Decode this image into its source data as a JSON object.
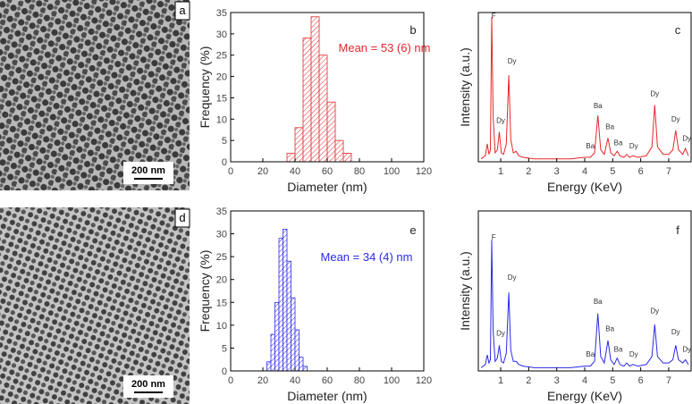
{
  "panels": [
    {
      "label": "a",
      "scale_bar": "200 nm"
    },
    {
      "label": "d",
      "scale_bar": "200 nm"
    }
  ],
  "chart_data": [
    {
      "type": "histogram",
      "panel_label": "b",
      "annotation": "Mean = 53 (6) nm",
      "xlabel": "Diameter (nm)",
      "ylabel": "Frequency (%)",
      "bins": [
        35,
        40,
        45,
        50,
        55,
        60,
        65,
        70,
        75
      ],
      "values": [
        2,
        8,
        29,
        34,
        25,
        14,
        5,
        2
      ],
      "color": "#e8262a",
      "xlim": [
        0,
        120
      ],
      "xticks": [
        0,
        20,
        40,
        60,
        80,
        100,
        120
      ],
      "ylim": [
        0,
        35
      ],
      "yticks": [
        0,
        5,
        10,
        15,
        20,
        25,
        30,
        35
      ]
    },
    {
      "type": "line",
      "panel_label": "c",
      "xlabel": "Energy (KeV)",
      "ylabel": "Intensity (a.u.)",
      "color": "#e8262a",
      "x": [
        0.3,
        0.45,
        0.52,
        0.58,
        0.63,
        0.68,
        0.73,
        0.8,
        0.88,
        0.95,
        1.02,
        1.1,
        1.2,
        1.29,
        1.36,
        1.45,
        1.55,
        1.65,
        1.8,
        2.2,
        2.8,
        3.5,
        4.0,
        4.2,
        4.35,
        4.47,
        4.57,
        4.7,
        4.83,
        4.93,
        5.05,
        5.16,
        5.26,
        5.4,
        5.5,
        5.6,
        5.72,
        5.9,
        6.2,
        6.4,
        6.5,
        6.6,
        6.8,
        7.0,
        7.15,
        7.25,
        7.35,
        7.5,
        7.6,
        7.7
      ],
      "values": [
        2,
        4,
        12,
        5,
        8,
        97,
        30,
        6,
        8,
        20,
        6,
        5,
        12,
        58,
        15,
        6,
        7,
        4,
        3,
        2,
        2,
        2,
        3,
        3,
        6,
        31,
        8,
        5,
        16,
        6,
        4,
        7,
        4,
        3,
        5,
        3,
        4,
        3,
        4,
        10,
        38,
        10,
        5,
        5,
        8,
        21,
        8,
        5,
        9,
        4
      ],
      "xlim": [
        0.2,
        7.8
      ],
      "xticks": [
        1,
        2,
        3,
        4,
        5,
        6,
        7
      ],
      "ylim": [
        0,
        100
      ],
      "annotations": [
        {
          "text": "F",
          "x": 0.75,
          "y": 96
        },
        {
          "text": "Dy",
          "x": 1.0,
          "y": 26
        },
        {
          "text": "Dy",
          "x": 1.4,
          "y": 66
        },
        {
          "text": "Ba",
          "x": 4.2,
          "y": 9
        },
        {
          "text": "Ba",
          "x": 4.47,
          "y": 36
        },
        {
          "text": "Ba",
          "x": 4.9,
          "y": 22
        },
        {
          "text": "Ba",
          "x": 5.2,
          "y": 11
        },
        {
          "text": "Dy",
          "x": 5.75,
          "y": 9
        },
        {
          "text": "Dy",
          "x": 6.5,
          "y": 44
        },
        {
          "text": "Dy",
          "x": 7.25,
          "y": 27
        },
        {
          "text": "Dy",
          "x": 7.65,
          "y": 14
        }
      ]
    },
    {
      "type": "histogram",
      "panel_label": "e",
      "annotation": "Mean = 34 (4) nm",
      "xlabel": "Diameter (nm)",
      "ylabel": "Frequency (%)",
      "bins": [
        22.5,
        25,
        27.5,
        30,
        32.5,
        35,
        37.5,
        40,
        42.5,
        45,
        47.5
      ],
      "values": [
        2,
        8,
        15,
        29,
        31,
        24,
        16,
        9,
        3,
        1
      ],
      "color": "#2a2ae8",
      "xlim": [
        0,
        120
      ],
      "xticks": [
        0,
        20,
        40,
        60,
        80,
        100,
        120
      ],
      "ylim": [
        0,
        35
      ],
      "yticks": [
        0,
        5,
        10,
        15,
        20,
        25,
        30,
        35
      ]
    },
    {
      "type": "line",
      "panel_label": "f",
      "xlabel": "Energy (KeV)",
      "ylabel": "Intensity (a.u.)",
      "color": "#2a2ae8",
      "x": [
        0.3,
        0.45,
        0.52,
        0.58,
        0.63,
        0.68,
        0.73,
        0.8,
        0.88,
        0.95,
        1.02,
        1.1,
        1.2,
        1.29,
        1.36,
        1.45,
        1.55,
        1.65,
        1.8,
        2.2,
        2.8,
        3.5,
        4.0,
        4.2,
        4.35,
        4.47,
        4.57,
        4.7,
        4.83,
        4.93,
        5.05,
        5.16,
        5.26,
        5.4,
        5.5,
        5.6,
        5.72,
        5.9,
        6.2,
        6.4,
        6.5,
        6.6,
        6.8,
        7.0,
        7.15,
        7.25,
        7.35,
        7.5,
        7.6,
        7.7
      ],
      "values": [
        2,
        4,
        10,
        5,
        7,
        82,
        25,
        6,
        8,
        16,
        6,
        5,
        11,
        49,
        13,
        6,
        6,
        4,
        3,
        2,
        2,
        2,
        3,
        3,
        6,
        36,
        9,
        5,
        19,
        7,
        4,
        8,
        4,
        3,
        5,
        3,
        4,
        3,
        4,
        9,
        29,
        9,
        5,
        5,
        7,
        16,
        7,
        5,
        7,
        4
      ],
      "xlim": [
        0.2,
        7.8
      ],
      "xticks": [
        1,
        2,
        3,
        4,
        5,
        6,
        7
      ],
      "ylim": [
        0,
        100
      ],
      "annotations": [
        {
          "text": "F",
          "x": 0.75,
          "y": 82
        },
        {
          "text": "Dy",
          "x": 1.0,
          "y": 22
        },
        {
          "text": "Dy",
          "x": 1.4,
          "y": 57
        },
        {
          "text": "Ba",
          "x": 4.2,
          "y": 9
        },
        {
          "text": "Ba",
          "x": 4.47,
          "y": 42
        },
        {
          "text": "Ba",
          "x": 4.9,
          "y": 25
        },
        {
          "text": "Ba",
          "x": 5.2,
          "y": 12
        },
        {
          "text": "Dy",
          "x": 5.75,
          "y": 9
        },
        {
          "text": "Dy",
          "x": 6.5,
          "y": 36
        },
        {
          "text": "Dy",
          "x": 7.25,
          "y": 23
        },
        {
          "text": "Dy",
          "x": 7.65,
          "y": 12
        }
      ]
    }
  ]
}
